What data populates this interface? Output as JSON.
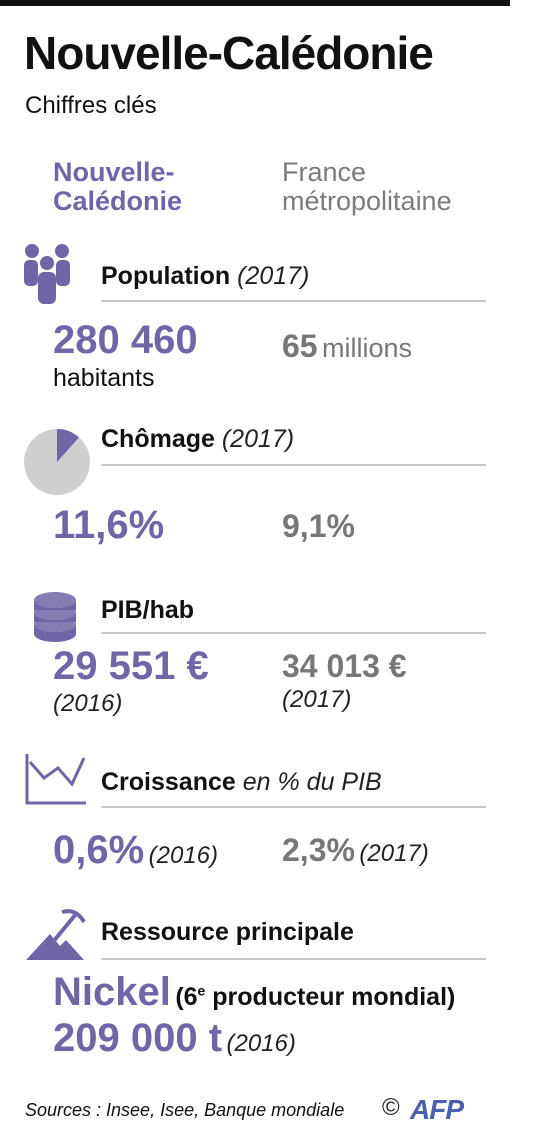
{
  "title": "Nouvelle-Calédonie",
  "subtitle": "Chiffres clés",
  "columns": {
    "nc_line1": "Nouvelle-",
    "nc_line2": "Calédonie",
    "fr_line1": "France",
    "fr_line2": "métropolitaine"
  },
  "population": {
    "label": "Population",
    "year": "(2017)",
    "nc_value": "280 460",
    "nc_unit": "habitants",
    "fr_value": "65",
    "fr_unit": "millions"
  },
  "chomage": {
    "label": "Chômage",
    "year": "(2017)",
    "nc_value": "11,6%",
    "fr_value": "9,1%",
    "pie_fraction": 0.116
  },
  "pib": {
    "label": "PIB/hab",
    "nc_value": "29 551 €",
    "nc_year": "(2016)",
    "fr_value": "34 013 €",
    "fr_year": "(2017)"
  },
  "croissance": {
    "label": "Croissance",
    "label_suffix": "en % du PIB",
    "nc_value": "0,6%",
    "nc_year": "(2016)",
    "fr_value": "2,3%",
    "fr_year": "(2017)"
  },
  "ressource": {
    "label": "Ressource principale",
    "main": "Nickel",
    "detail_open": "(6",
    "detail_sup": "e",
    "detail_rest": " producteur mondial)",
    "tonnage": "209 000 t",
    "year": "(2016)"
  },
  "footer": {
    "sources": "Sources : Insee, Isee, Banque mondiale",
    "copyright": "©",
    "agency": "AFP"
  },
  "colors": {
    "accent": "#6e66a6",
    "gray": "#777777",
    "separator": "#c8c8c8"
  },
  "icons": [
    "people-icon",
    "pie-chart-icon",
    "coins-icon",
    "growth-chart-icon",
    "mine-pickaxe-icon"
  ]
}
